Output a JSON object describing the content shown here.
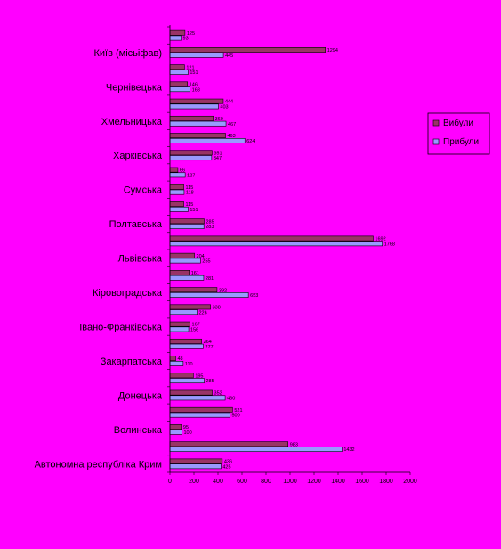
{
  "chart_data": {
    "type": "bar",
    "orientation": "horizontal",
    "title": "",
    "xlabel": "",
    "ylabel": "",
    "xlim": [
      0,
      2000
    ],
    "xticks": [
      0,
      200,
      400,
      600,
      800,
      1000,
      1200,
      1400,
      1600,
      1800,
      2000
    ],
    "grid": false,
    "legend": "right",
    "categories": [
      "",
      "Київ (місьіфав)",
      "",
      "Чернівецька",
      "",
      "Хмельницька",
      "",
      "Харківська",
      "",
      "Сумська",
      "",
      "Полтавська",
      "",
      "Львівська",
      "",
      "Кіровоградська",
      "",
      "Івано-Франківська",
      "",
      "Закарпатська",
      "",
      "Донецька",
      "",
      "Волинська",
      "",
      "Автономна республіка Крим"
    ],
    "series": [
      {
        "name": "Вибули",
        "color": "#993366",
        "values": [
          125,
          1294,
          121,
          146,
          444,
          360,
          463,
          351,
          66,
          115,
          115,
          285,
          1692,
          204,
          161,
          392,
          338,
          167,
          264,
          48,
          195,
          352,
          521,
          95,
          983,
          436
        ]
      },
      {
        "name": "Прибули",
        "color": "#9999FF",
        "values": [
          93,
          445,
          151,
          168,
          403,
          467,
          624,
          347,
          127,
          118,
          151,
          283,
          1768,
          255,
          281,
          653,
          226,
          156,
          277,
          110,
          285,
          460,
          500,
          100,
          1432,
          425
        ]
      }
    ]
  }
}
